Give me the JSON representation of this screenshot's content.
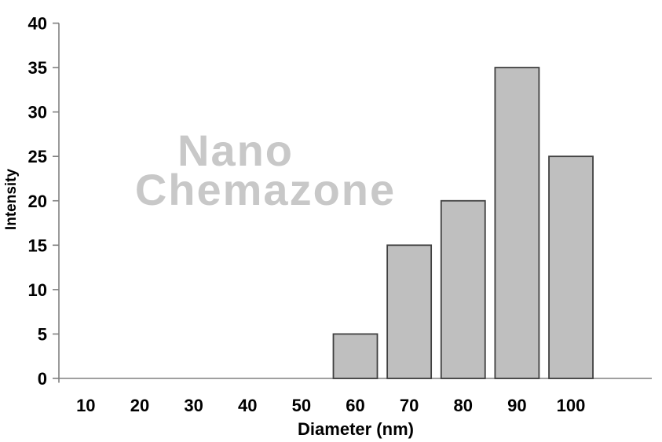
{
  "figure": {
    "background": "#ffffff",
    "watermark": {
      "line1": "Nano",
      "line2": "Chemazone",
      "color": "#c8c8c8"
    }
  },
  "chart_data": {
    "type": "bar",
    "title": "",
    "xlabel": "Diameter (nm)",
    "ylabel": "Intensity",
    "categories": [
      "10",
      "20",
      "30",
      "40",
      "50",
      "60",
      "70",
      "80",
      "90",
      "100"
    ],
    "values": [
      0,
      0,
      0,
      0,
      0,
      5,
      15,
      20,
      35,
      25
    ],
    "ylim": [
      0,
      40
    ],
    "ytick_step": 5,
    "yticks": [
      0,
      5,
      10,
      15,
      20,
      25,
      30,
      35,
      40
    ],
    "grid": false,
    "legend": null,
    "colors": {
      "bar_fill": "#bfbfbf",
      "bar_stroke": "#404040",
      "axis_line": "#808080",
      "tick_mark": "#808080",
      "label_color": "#000000"
    }
  }
}
